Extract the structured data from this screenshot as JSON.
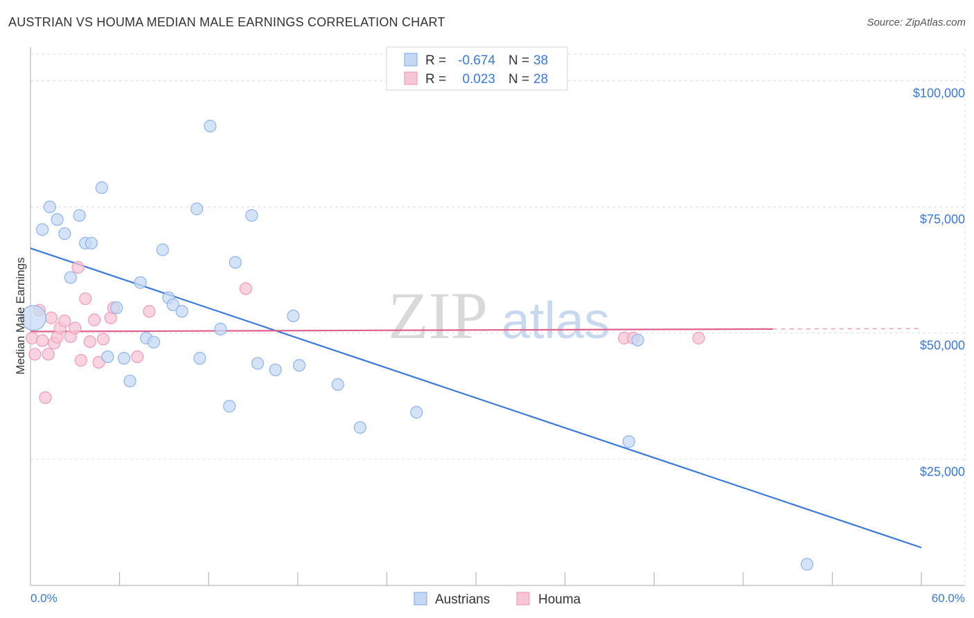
{
  "header": {
    "title": "AUSTRIAN VS HOUMA MEDIAN MALE EARNINGS CORRELATION CHART",
    "source": "Source: ZipAtlas.com"
  },
  "watermark": {
    "zip": "ZIP",
    "atlas": "atlas"
  },
  "colors": {
    "blue": "#3b78d8",
    "blue_fill": "#c5d9f4",
    "pink": "#e0608a",
    "pink_fill": "#f7c6d6",
    "value_text": "#3b78d8",
    "grid": "#dddddd"
  },
  "chart_data": {
    "type": "scatter",
    "title": "AUSTRIAN VS HOUMA MEDIAN MALE EARNINGS CORRELATION CHART",
    "xlabel": "",
    "ylabel": "Median Male Earnings",
    "xlim": [
      0,
      60
    ],
    "ylim": [
      0,
      105000
    ],
    "x_tick_labels": {
      "left": "0.0%",
      "right": "60.0%"
    },
    "y_ticks": [
      {
        "value": 25000,
        "label": "$25,000"
      },
      {
        "value": 50000,
        "label": "$50,000"
      },
      {
        "value": 75000,
        "label": "$75,000"
      },
      {
        "value": 100000,
        "label": "$100,000"
      }
    ],
    "legend_stats": [
      {
        "series": "Austrians",
        "r_label": "R =",
        "r_value": "-0.674",
        "n_label": "N =",
        "n_value": "38"
      },
      {
        "series": "Houma",
        "r_label": "R =",
        "r_value": "0.023",
        "n_label": "N =",
        "n_value": "28"
      }
    ],
    "series": [
      {
        "name": "Austrians",
        "color": "#3b78d8",
        "points": [
          [
            0.2,
            53000
          ],
          [
            0.8,
            70500
          ],
          [
            1.3,
            75000
          ],
          [
            1.8,
            72500
          ],
          [
            2.3,
            69700
          ],
          [
            2.7,
            61000
          ],
          [
            3.3,
            73300
          ],
          [
            3.7,
            67800
          ],
          [
            4.1,
            67800
          ],
          [
            4.8,
            78800
          ],
          [
            5.2,
            45300
          ],
          [
            5.8,
            55000
          ],
          [
            6.3,
            45000
          ],
          [
            6.7,
            40500
          ],
          [
            7.4,
            60000
          ],
          [
            7.8,
            49000
          ],
          [
            8.3,
            48200
          ],
          [
            8.9,
            66500
          ],
          [
            9.3,
            57000
          ],
          [
            9.6,
            55600
          ],
          [
            10.2,
            54300
          ],
          [
            11.2,
            74600
          ],
          [
            11.4,
            45000
          ],
          [
            12.1,
            91000
          ],
          [
            12.8,
            50800
          ],
          [
            13.4,
            35500
          ],
          [
            13.8,
            64000
          ],
          [
            14.9,
            73300
          ],
          [
            15.3,
            44000
          ],
          [
            16.5,
            42700
          ],
          [
            17.7,
            53400
          ],
          [
            18.1,
            43600
          ],
          [
            20.7,
            39800
          ],
          [
            22.2,
            31300
          ],
          [
            26.0,
            34300
          ],
          [
            40.3,
            28500
          ],
          [
            40.9,
            48600
          ],
          [
            52.3,
            4200
          ]
        ],
        "trend": {
          "x": [
            0,
            60
          ],
          "y": [
            66800,
            7500
          ]
        }
      },
      {
        "name": "Houma",
        "color": "#e0608a",
        "points": [
          [
            0.1,
            49000
          ],
          [
            0.3,
            45800
          ],
          [
            0.6,
            54500
          ],
          [
            0.8,
            48500
          ],
          [
            1.0,
            37200
          ],
          [
            1.2,
            45800
          ],
          [
            1.4,
            53000
          ],
          [
            1.6,
            48000
          ],
          [
            1.8,
            49200
          ],
          [
            2.0,
            51000
          ],
          [
            2.3,
            52400
          ],
          [
            2.7,
            49300
          ],
          [
            3.0,
            51000
          ],
          [
            3.2,
            63000
          ],
          [
            3.4,
            44600
          ],
          [
            3.7,
            56800
          ],
          [
            4.0,
            48300
          ],
          [
            4.3,
            52600
          ],
          [
            4.6,
            44200
          ],
          [
            4.9,
            48800
          ],
          [
            5.4,
            53000
          ],
          [
            5.6,
            55000
          ],
          [
            7.2,
            45300
          ],
          [
            8.0,
            54300
          ],
          [
            14.5,
            58800
          ],
          [
            40.0,
            49000
          ],
          [
            40.6,
            49000
          ],
          [
            45.0,
            49000
          ]
        ],
        "trend": {
          "x": [
            0,
            50
          ],
          "y": [
            50300,
            50800
          ],
          "dashed_to": 60
        }
      }
    ]
  },
  "legend": {
    "items": [
      {
        "label": "Austrians"
      },
      {
        "label": "Houma"
      }
    ]
  }
}
